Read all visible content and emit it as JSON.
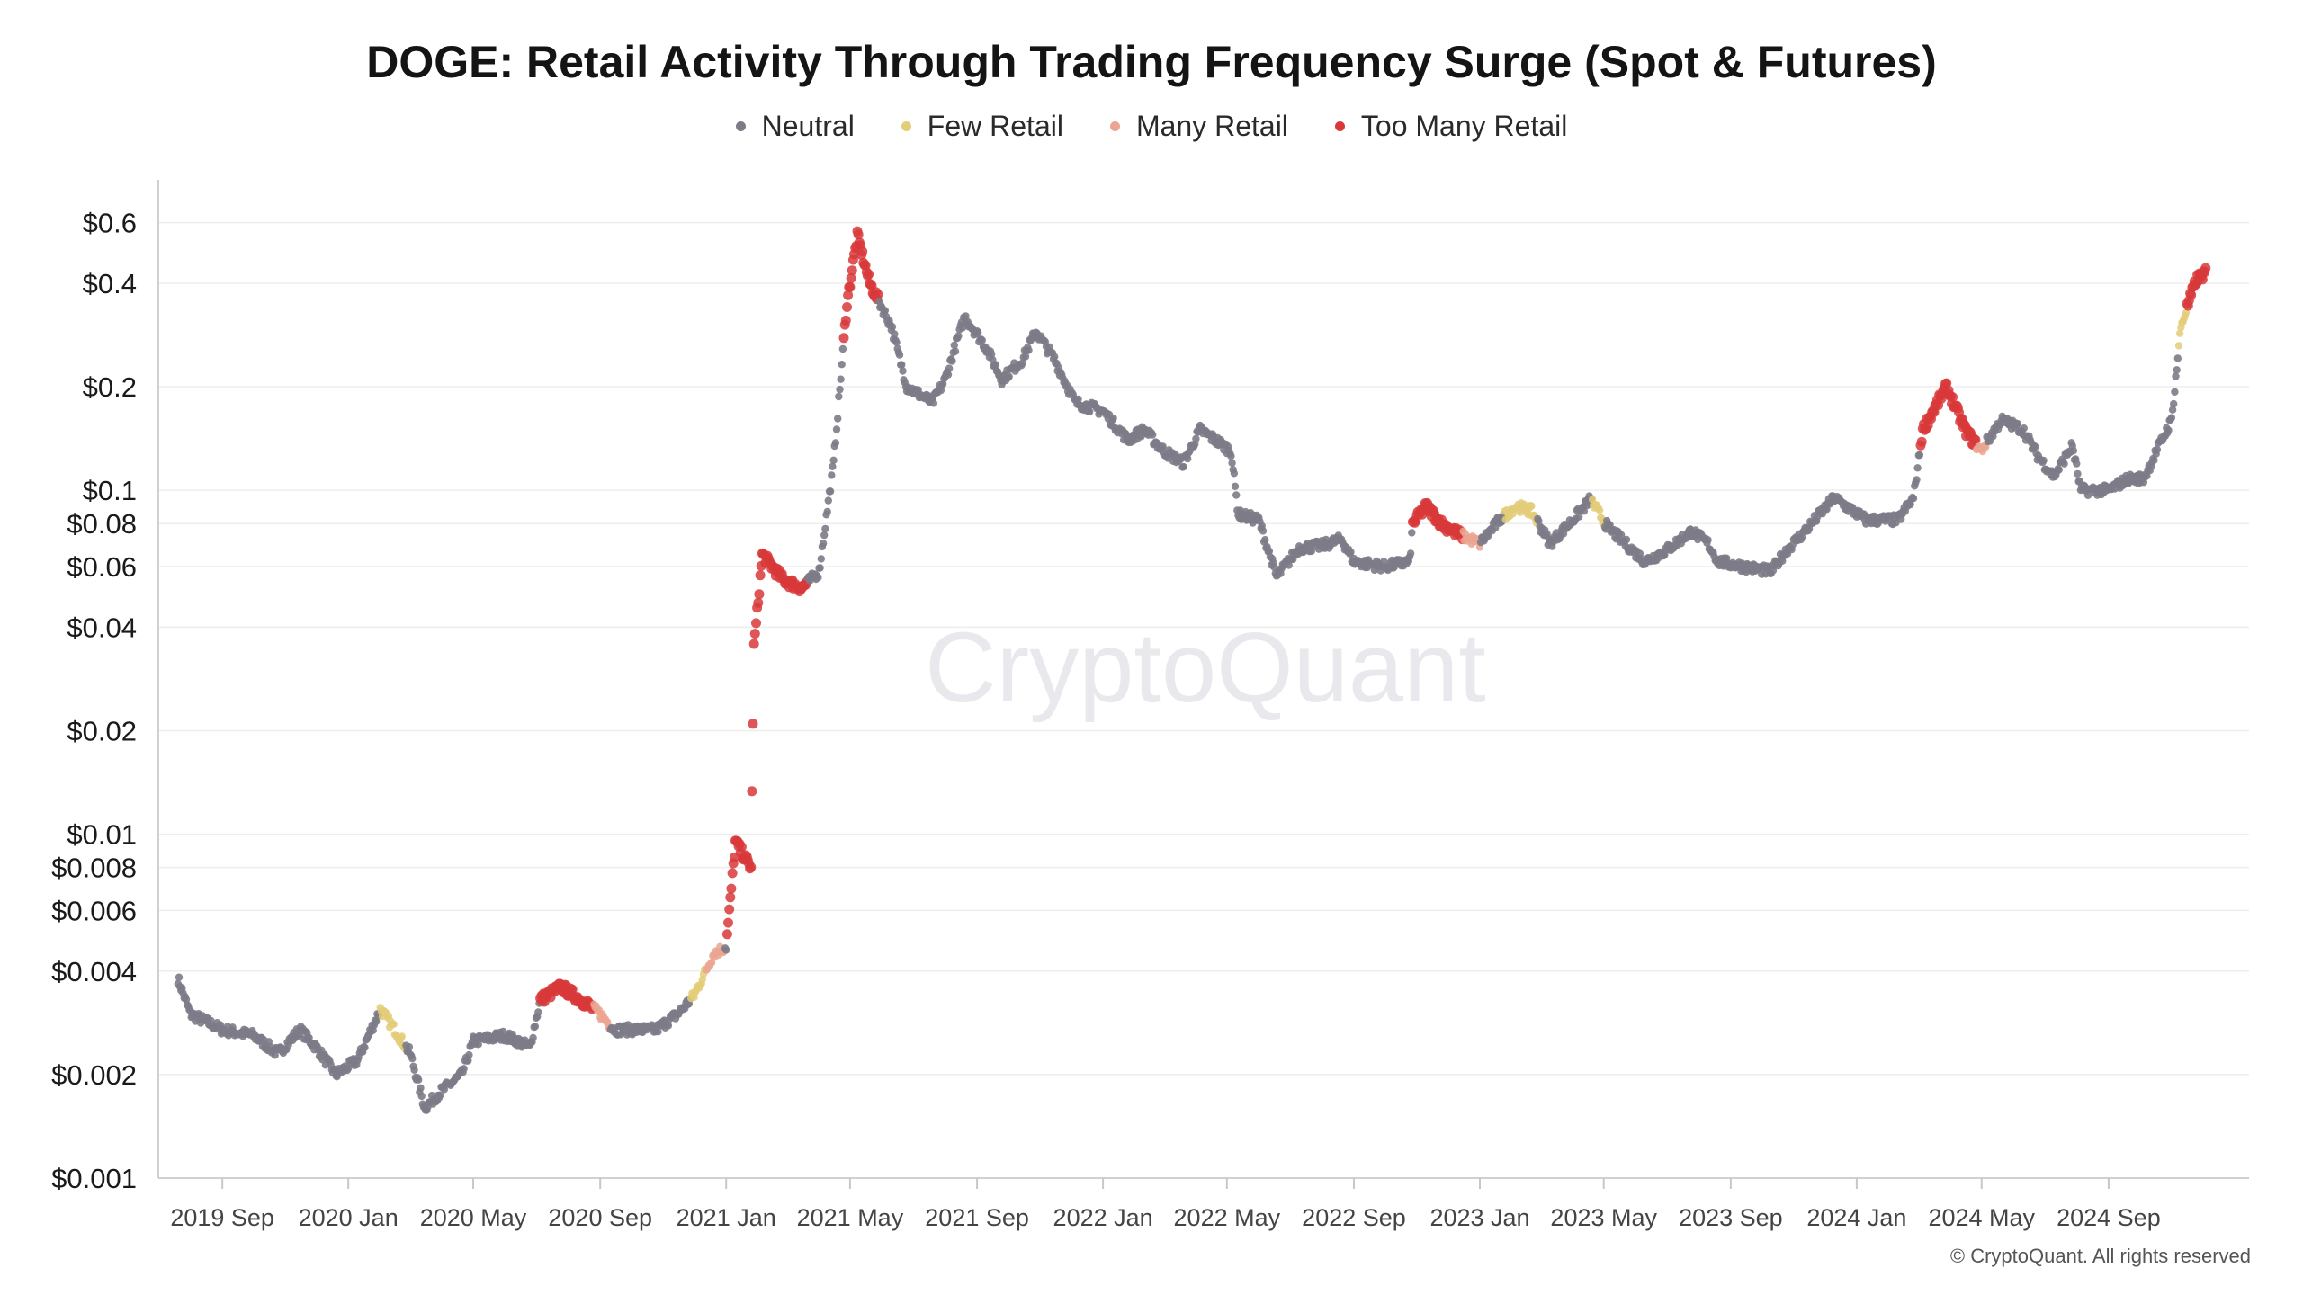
{
  "chart_data": {
    "type": "scatter",
    "title": "DOGE: Retail Activity Through Trading Frequency Surge (Spot & Futures)",
    "y_scale": "log",
    "ylim": [
      0.001,
      0.7
    ],
    "xlim": [
      "2019-07-01",
      "2025-01-15"
    ],
    "grid": true,
    "legend_position": "top-center",
    "y_ticks": [
      {
        "value": 0.6,
        "label": "$0.6"
      },
      {
        "value": 0.4,
        "label": "$0.4"
      },
      {
        "value": 0.2,
        "label": "$0.2"
      },
      {
        "value": 0.1,
        "label": "$0.1"
      },
      {
        "value": 0.08,
        "label": "$0.08"
      },
      {
        "value": 0.06,
        "label": "$0.06"
      },
      {
        "value": 0.04,
        "label": "$0.04"
      },
      {
        "value": 0.02,
        "label": "$0.02"
      },
      {
        "value": 0.01,
        "label": "$0.01"
      },
      {
        "value": 0.008,
        "label": "$0.008"
      },
      {
        "value": 0.006,
        "label": "$0.006"
      },
      {
        "value": 0.004,
        "label": "$0.004"
      },
      {
        "value": 0.002,
        "label": "$0.002"
      },
      {
        "value": 0.001,
        "label": "$0.001"
      }
    ],
    "x_ticks": [
      {
        "date": "2019-09-01",
        "label": "2019 Sep"
      },
      {
        "date": "2020-01-01",
        "label": "2020 Jan"
      },
      {
        "date": "2020-05-01",
        "label": "2020 May"
      },
      {
        "date": "2020-09-01",
        "label": "2020 Sep"
      },
      {
        "date": "2021-01-01",
        "label": "2021 Jan"
      },
      {
        "date": "2021-05-01",
        "label": "2021 May"
      },
      {
        "date": "2021-09-01",
        "label": "2021 Sep"
      },
      {
        "date": "2022-01-01",
        "label": "2022 Jan"
      },
      {
        "date": "2022-05-01",
        "label": "2022 May"
      },
      {
        "date": "2022-09-01",
        "label": "2022 Sep"
      },
      {
        "date": "2023-01-01",
        "label": "2023 Jan"
      },
      {
        "date": "2023-05-01",
        "label": "2023 May"
      },
      {
        "date": "2023-09-01",
        "label": "2023 Sep"
      },
      {
        "date": "2024-01-01",
        "label": "2024 Jan"
      },
      {
        "date": "2024-05-01",
        "label": "2024 May"
      },
      {
        "date": "2024-09-01",
        "label": "2024 Sep"
      }
    ],
    "series": [
      {
        "key": "neutral",
        "name": "Neutral",
        "color": "#7c7b87"
      },
      {
        "key": "few",
        "name": "Few Retail",
        "color": "#e3cd78"
      },
      {
        "key": "many",
        "name": "Many Retail",
        "color": "#eba590"
      },
      {
        "key": "too_many",
        "name": "Too Many Retail",
        "color": "#d8383a"
      }
    ],
    "price_path": [
      [
        "2019-07-20",
        0.0038
      ],
      [
        "2019-08-01",
        0.003
      ],
      [
        "2019-09-01",
        0.0027
      ],
      [
        "2019-10-01",
        0.0026
      ],
      [
        "2019-10-25",
        0.0023
      ],
      [
        "2019-11-15",
        0.0027
      ],
      [
        "2019-12-01",
        0.0024
      ],
      [
        "2019-12-20",
        0.002
      ],
      [
        "2020-01-10",
        0.0022
      ],
      [
        "2020-02-01",
        0.0031
      ],
      [
        "2020-02-15",
        0.0027
      ],
      [
        "2020-03-01",
        0.0023
      ],
      [
        "2020-03-15",
        0.0016
      ],
      [
        "2020-04-01",
        0.0018
      ],
      [
        "2020-04-20",
        0.002
      ],
      [
        "2020-05-01",
        0.0025
      ],
      [
        "2020-06-01",
        0.0026
      ],
      [
        "2020-06-25",
        0.0024
      ],
      [
        "2020-07-05",
        0.0033
      ],
      [
        "2020-07-25",
        0.0036
      ],
      [
        "2020-08-20",
        0.0032
      ],
      [
        "2020-09-01",
        0.003
      ],
      [
        "2020-09-15",
        0.0027
      ],
      [
        "2020-10-25",
        0.0027
      ],
      [
        "2020-11-15",
        0.003
      ],
      [
        "2020-12-01",
        0.0034
      ],
      [
        "2020-12-20",
        0.0045
      ],
      [
        "2021-01-01",
        0.0047
      ],
      [
        "2021-01-10",
        0.0095
      ],
      [
        "2021-01-25",
        0.008
      ],
      [
        "2021-01-28",
        0.035
      ],
      [
        "2021-02-05",
        0.065
      ],
      [
        "2021-02-25",
        0.055
      ],
      [
        "2021-03-15",
        0.052
      ],
      [
        "2021-04-01",
        0.058
      ],
      [
        "2021-04-15",
        0.12
      ],
      [
        "2021-04-28",
        0.35
      ],
      [
        "2021-05-08",
        0.55
      ],
      [
        "2021-05-20",
        0.4
      ],
      [
        "2021-06-10",
        0.3
      ],
      [
        "2021-06-25",
        0.2
      ],
      [
        "2021-07-20",
        0.18
      ],
      [
        "2021-08-01",
        0.21
      ],
      [
        "2021-08-20",
        0.32
      ],
      [
        "2021-09-10",
        0.26
      ],
      [
        "2021-09-25",
        0.21
      ],
      [
        "2021-10-15",
        0.24
      ],
      [
        "2021-10-28",
        0.29
      ],
      [
        "2021-11-15",
        0.24
      ],
      [
        "2021-12-05",
        0.18
      ],
      [
        "2022-01-01",
        0.17
      ],
      [
        "2022-01-25",
        0.14
      ],
      [
        "2022-02-10",
        0.15
      ],
      [
        "2022-03-01",
        0.13
      ],
      [
        "2022-03-20",
        0.12
      ],
      [
        "2022-04-05",
        0.15
      ],
      [
        "2022-04-20",
        0.14
      ],
      [
        "2022-05-05",
        0.13
      ],
      [
        "2022-05-12",
        0.085
      ],
      [
        "2022-06-01",
        0.082
      ],
      [
        "2022-06-18",
        0.056
      ],
      [
        "2022-07-10",
        0.068
      ],
      [
        "2022-08-01",
        0.069
      ],
      [
        "2022-08-20",
        0.072
      ],
      [
        "2022-09-01",
        0.062
      ],
      [
        "2022-10-01",
        0.06
      ],
      [
        "2022-10-25",
        0.062
      ],
      [
        "2022-10-28",
        0.08
      ],
      [
        "2022-11-10",
        0.09
      ],
      [
        "2022-11-25",
        0.08
      ],
      [
        "2022-12-10",
        0.075
      ],
      [
        "2023-01-01",
        0.07
      ],
      [
        "2023-01-20",
        0.082
      ],
      [
        "2023-02-05",
        0.09
      ],
      [
        "2023-02-20",
        0.087
      ],
      [
        "2023-03-10",
        0.07
      ],
      [
        "2023-04-01",
        0.082
      ],
      [
        "2023-04-18",
        0.094
      ],
      [
        "2023-05-05",
        0.078
      ],
      [
        "2023-06-10",
        0.062
      ],
      [
        "2023-07-01",
        0.067
      ],
      [
        "2023-07-25",
        0.076
      ],
      [
        "2023-08-10",
        0.07
      ],
      [
        "2023-08-20",
        0.062
      ],
      [
        "2023-10-10",
        0.058
      ],
      [
        "2023-10-25",
        0.067
      ],
      [
        "2023-11-10",
        0.075
      ],
      [
        "2023-12-10",
        0.095
      ],
      [
        "2024-01-10",
        0.082
      ],
      [
        "2024-02-10",
        0.082
      ],
      [
        "2024-02-25",
        0.095
      ],
      [
        "2024-03-05",
        0.15
      ],
      [
        "2024-03-28",
        0.2
      ],
      [
        "2024-04-15",
        0.15
      ],
      [
        "2024-04-30",
        0.13
      ],
      [
        "2024-05-20",
        0.16
      ],
      [
        "2024-06-10",
        0.15
      ],
      [
        "2024-06-25",
        0.125
      ],
      [
        "2024-07-10",
        0.11
      ],
      [
        "2024-07-28",
        0.135
      ],
      [
        "2024-08-05",
        0.1
      ],
      [
        "2024-09-01",
        0.1
      ],
      [
        "2024-09-20",
        0.108
      ],
      [
        "2024-10-05",
        0.108
      ],
      [
        "2024-10-20",
        0.135
      ],
      [
        "2024-11-01",
        0.16
      ],
      [
        "2024-11-10",
        0.3
      ],
      [
        "2024-11-25",
        0.41
      ],
      [
        "2024-12-05",
        0.43
      ]
    ],
    "retail_periods": [
      {
        "start": "2020-02-01",
        "end": "2020-02-25",
        "category": "few"
      },
      {
        "start": "2020-07-05",
        "end": "2020-08-25",
        "category": "too_many"
      },
      {
        "start": "2020-08-25",
        "end": "2020-09-10",
        "category": "many"
      },
      {
        "start": "2020-11-28",
        "end": "2020-12-12",
        "category": "few"
      },
      {
        "start": "2020-12-12",
        "end": "2020-12-30",
        "category": "many"
      },
      {
        "start": "2021-01-02",
        "end": "2021-01-28",
        "category": "too_many"
      },
      {
        "start": "2021-01-28",
        "end": "2021-03-20",
        "category": "too_many"
      },
      {
        "start": "2021-04-25",
        "end": "2021-05-28",
        "category": "too_many"
      },
      {
        "start": "2022-10-28",
        "end": "2022-12-15",
        "category": "too_many"
      },
      {
        "start": "2022-12-15",
        "end": "2023-01-01",
        "category": "many"
      },
      {
        "start": "2023-01-25",
        "end": "2023-02-25",
        "category": "few"
      },
      {
        "start": "2023-04-20",
        "end": "2023-05-01",
        "category": "few"
      },
      {
        "start": "2024-03-03",
        "end": "2024-04-25",
        "category": "too_many"
      },
      {
        "start": "2024-04-25",
        "end": "2024-05-05",
        "category": "many"
      },
      {
        "start": "2024-11-08",
        "end": "2024-11-15",
        "category": "few"
      },
      {
        "start": "2024-11-15",
        "end": "2024-12-06",
        "category": "too_many"
      }
    ],
    "watermark": "CryptoQuant",
    "copyright": "© CryptoQuant. All rights reserved"
  }
}
